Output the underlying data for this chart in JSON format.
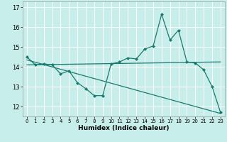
{
  "xlabel": "Humidex (Indice chaleur)",
  "bg_color": "#c8eeec",
  "grid_color": "#ffffff",
  "line_color": "#1a7a6e",
  "xlim": [
    -0.5,
    23.5
  ],
  "ylim": [
    11.5,
    17.3
  ],
  "yticks": [
    12,
    13,
    14,
    15,
    16,
    17
  ],
  "xticks": [
    0,
    1,
    2,
    3,
    4,
    5,
    6,
    7,
    8,
    9,
    10,
    11,
    12,
    13,
    14,
    15,
    16,
    17,
    18,
    19,
    20,
    21,
    22,
    23
  ],
  "data_x": [
    0,
    1,
    2,
    3,
    4,
    5,
    6,
    7,
    8,
    9,
    10,
    11,
    12,
    13,
    14,
    15,
    16,
    17,
    18,
    19,
    20,
    21,
    22,
    23
  ],
  "data_y": [
    14.5,
    14.1,
    14.15,
    14.1,
    13.65,
    13.8,
    13.2,
    12.9,
    12.55,
    12.55,
    14.15,
    14.25,
    14.45,
    14.4,
    14.9,
    15.05,
    16.65,
    15.35,
    15.85,
    14.25,
    14.2,
    13.85,
    13.0,
    11.7
  ],
  "line1_x": [
    0,
    23
  ],
  "line1_y": [
    14.1,
    14.25
  ],
  "line2_x": [
    0,
    23
  ],
  "line2_y": [
    14.35,
    11.65
  ],
  "marker_size": 2.5,
  "line_width": 0.9,
  "tick_fontsize": 6.0,
  "xlabel_fontsize": 6.5
}
